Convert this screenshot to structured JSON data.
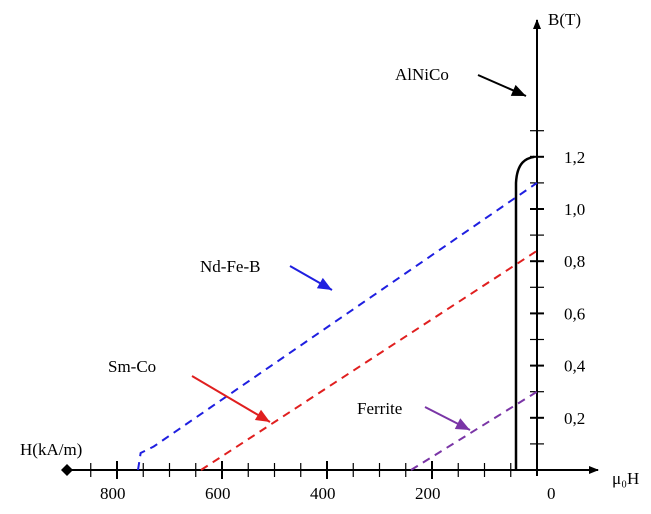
{
  "chart_data": {
    "type": "line",
    "xlabel": "H(kA/m)",
    "xlabel_right": "μ₀H",
    "ylabel": "B(T)",
    "x_ticks": [
      {
        "value": 800,
        "label": "800"
      },
      {
        "value": 600,
        "label": "600"
      },
      {
        "value": 400,
        "label": "400"
      },
      {
        "value": 200,
        "label": "200"
      },
      {
        "value": 0,
        "label": "0"
      }
    ],
    "y_ticks": [
      {
        "value": 0.2,
        "label": "0,2"
      },
      {
        "value": 0.4,
        "label": "0,4"
      },
      {
        "value": 0.6,
        "label": "0,6"
      },
      {
        "value": 0.8,
        "label": "0,8"
      },
      {
        "value": 1.0,
        "label": "1,0"
      },
      {
        "value": 1.2,
        "label": "1,2"
      }
    ],
    "xlim": [
      0,
      880
    ],
    "ylim": [
      0,
      1.38
    ],
    "series": [
      {
        "name": "AlNiCo",
        "color": "#000000",
        "style": "solid",
        "points": [
          [
            40,
            0
          ],
          [
            40,
            1.1
          ],
          [
            38,
            1.15
          ],
          [
            30,
            1.18
          ],
          [
            20,
            1.195
          ],
          [
            5,
            1.2
          ]
        ]
      },
      {
        "name": "Nd-Fe-B",
        "color": "#1f1fe0",
        "style": "dashed",
        "points": [
          [
            760,
            0
          ],
          [
            755,
            0.065
          ],
          [
            730,
            0.09
          ],
          [
            0,
            1.1
          ]
        ]
      },
      {
        "name": "Sm-Co",
        "color": "#e01f1f",
        "style": "dashed",
        "points": [
          [
            640,
            0
          ],
          [
            0,
            0.84
          ]
        ]
      },
      {
        "name": "Ferrite",
        "color": "#7a35a6",
        "style": "dashed",
        "points": [
          [
            240,
            0
          ],
          [
            0,
            0.3
          ]
        ]
      }
    ],
    "annotations": [
      {
        "series": "AlNiCo",
        "label": "AlNiCo",
        "color": "#000000"
      },
      {
        "series": "Nd-Fe-B",
        "label": "Nd-Fe-B",
        "color": "#1f1fe0"
      },
      {
        "series": "Sm-Co",
        "label": "Sm-Co",
        "color": "#e01f1f"
      },
      {
        "series": "Ferrite",
        "label": "Ferrite",
        "color": "#7a35a6"
      }
    ]
  }
}
